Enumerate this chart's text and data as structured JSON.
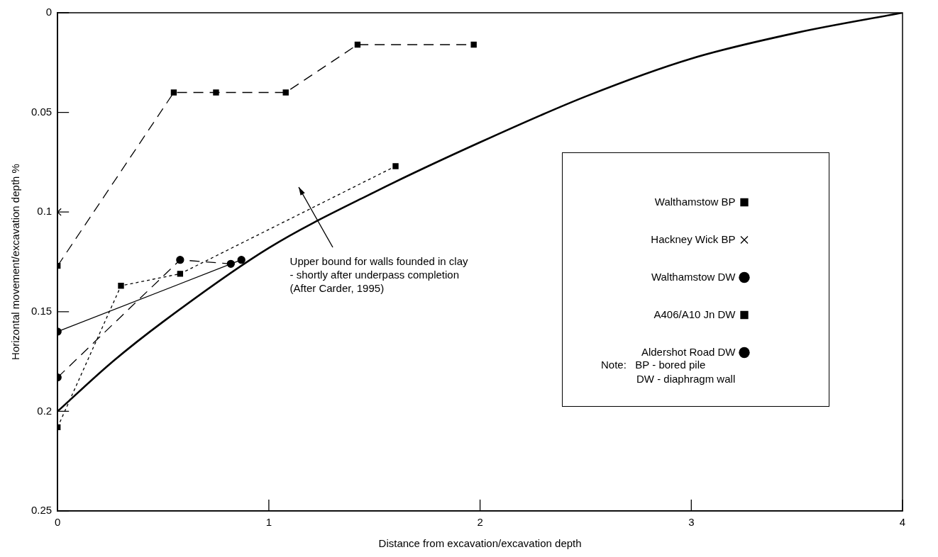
{
  "chart_data": {
    "type": "line",
    "xlabel": "Distance from excavation/excavation depth",
    "ylabel": "Horizontal movement/excavation depth %",
    "xlim": [
      0,
      4
    ],
    "xticks": [
      0,
      1,
      2,
      3,
      4
    ],
    "ylim": [
      0.25,
      0
    ],
    "yticks": [
      0,
      0.05,
      0.1,
      0.15,
      0.2,
      0.25
    ],
    "grid": false,
    "legend": "right",
    "series": [
      {
        "name": "Walthamstow BP",
        "color": "#000000",
        "marker": "square",
        "line_style": "dotted",
        "x": [
          0,
          0.3,
          0.58,
          1.6
        ],
        "values": [
          0.208,
          0.137,
          0.131,
          0.077
        ]
      },
      {
        "name": "Hackney Wick BP",
        "type": "scatter",
        "color": "#000000",
        "marker": "cross",
        "x": [
          0
        ],
        "values": [
          0.1
        ]
      },
      {
        "name": "Walthamstow DW",
        "color": "#000000",
        "marker": "circle",
        "line_style": "solid",
        "x": [
          0,
          0.87
        ],
        "values": [
          0.16,
          0.124
        ]
      },
      {
        "name": "A406/A10 Jn DW",
        "color": "#000000",
        "marker": "square",
        "line_style": "dashed",
        "x": [
          0,
          0.55,
          0.75,
          1.08,
          1.42,
          1.97
        ],
        "values": [
          0.127,
          0.04,
          0.04,
          0.04,
          0.016,
          0.016
        ]
      },
      {
        "name": "Aldershot Road DW",
        "color": "#000000",
        "marker": "circle",
        "line_style": "dashed",
        "x": [
          0,
          0.58,
          0.82
        ],
        "values": [
          0.183,
          0.124,
          0.126
        ]
      },
      {
        "color": "#000000",
        "marker": "none",
        "line_style": "solid",
        "x": [
          0,
          0.25,
          0.5,
          1,
          1.5,
          2,
          2.5,
          3,
          3.5,
          4
        ],
        "values": [
          0.2,
          0.176,
          0.155,
          0.118,
          0.09,
          0.065,
          0.042,
          0.023,
          0.01,
          0
        ]
      }
    ],
    "annotations": [
      "Upper bound for walls founded in clay\n- shortly after underpass completion\n(After Carder, 1995)",
      "Note:   BP - bored pile\n            DW - diaphragm wall"
    ]
  }
}
